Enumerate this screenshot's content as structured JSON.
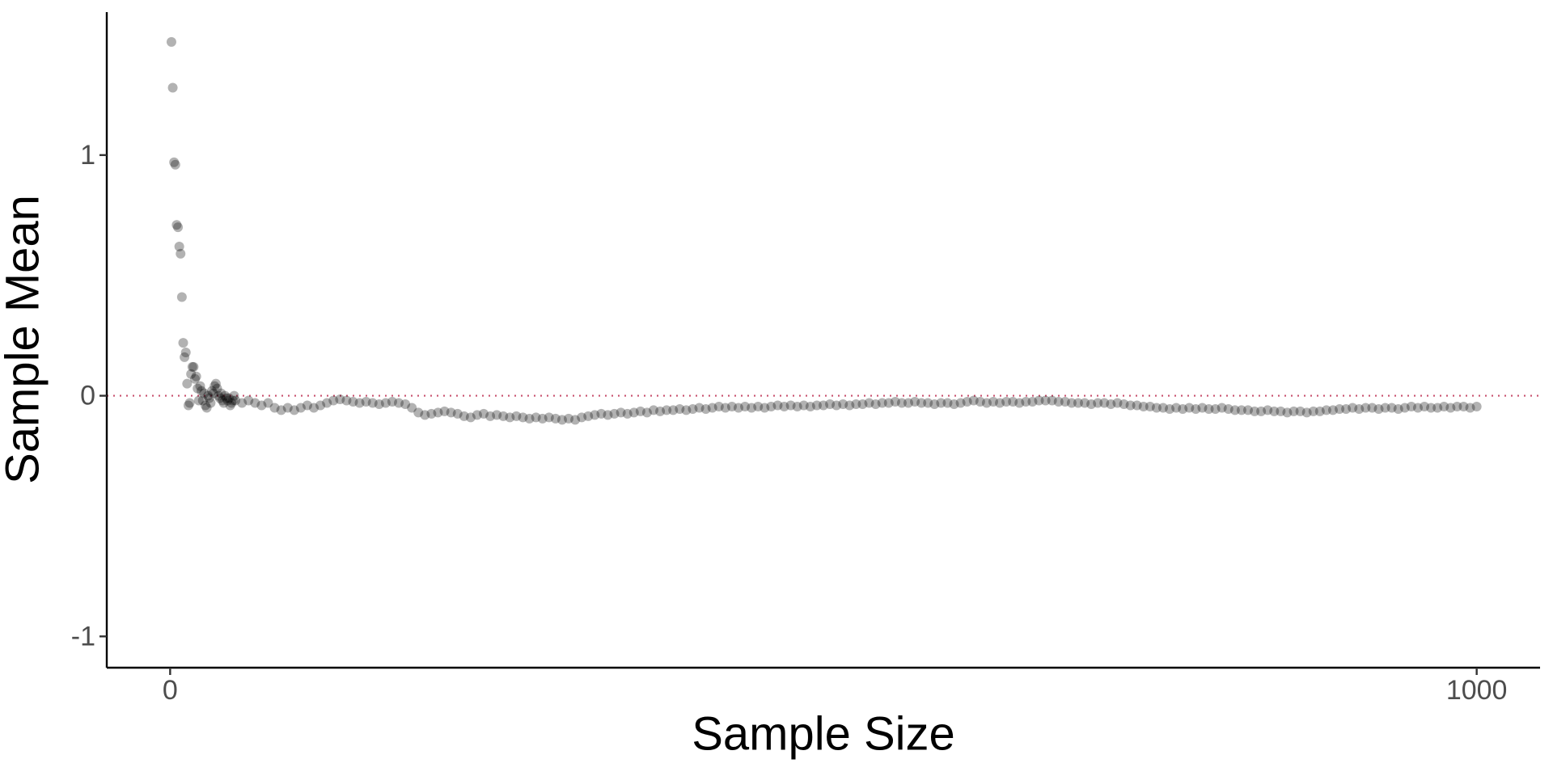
{
  "chart_data": {
    "type": "scatter",
    "xlabel": "Sample Size",
    "ylabel": "Sample Mean",
    "xlim": [
      -48.5,
      1048.5
    ],
    "ylim": [
      -1.13,
      1.594
    ],
    "xticks": [
      0,
      1000
    ],
    "yticks": [
      -1,
      0,
      1
    ],
    "hline": 0,
    "hline_color": "#c8506e",
    "series": [
      {
        "color": "#000000",
        "alpha": 0.3,
        "x": [
          1,
          2,
          3,
          4,
          5,
          6,
          7,
          8,
          9,
          10,
          11,
          12,
          13,
          14,
          15,
          16,
          17,
          18,
          19,
          20,
          21,
          22,
          23,
          24,
          25,
          26,
          27,
          28,
          29,
          30,
          31,
          32,
          33,
          34,
          35,
          36,
          37,
          38,
          39,
          40,
          41,
          42,
          43,
          44,
          45,
          46,
          47,
          48,
          49,
          50,
          55,
          60,
          65,
          70,
          75,
          80,
          85,
          90,
          95,
          100,
          105,
          110,
          115,
          120,
          125,
          130,
          135,
          140,
          145,
          150,
          155,
          160,
          165,
          170,
          175,
          180,
          185,
          190,
          195,
          200,
          205,
          210,
          215,
          220,
          225,
          230,
          235,
          240,
          245,
          250,
          255,
          260,
          265,
          270,
          275,
          280,
          285,
          290,
          295,
          300,
          305,
          310,
          315,
          320,
          325,
          330,
          335,
          340,
          345,
          350,
          355,
          360,
          365,
          370,
          375,
          380,
          385,
          390,
          395,
          400,
          405,
          410,
          415,
          420,
          425,
          430,
          435,
          440,
          445,
          450,
          455,
          460,
          465,
          470,
          475,
          480,
          485,
          490,
          495,
          500,
          505,
          510,
          515,
          520,
          525,
          530,
          535,
          540,
          545,
          550,
          555,
          560,
          565,
          570,
          575,
          580,
          585,
          590,
          595,
          600,
          605,
          610,
          615,
          620,
          625,
          630,
          635,
          640,
          645,
          650,
          655,
          660,
          665,
          670,
          675,
          680,
          685,
          690,
          695,
          700,
          705,
          710,
          715,
          720,
          725,
          730,
          735,
          740,
          745,
          750,
          755,
          760,
          765,
          770,
          775,
          780,
          785,
          790,
          795,
          800,
          805,
          810,
          815,
          820,
          825,
          830,
          835,
          840,
          845,
          850,
          855,
          860,
          865,
          870,
          875,
          880,
          885,
          890,
          895,
          900,
          905,
          910,
          915,
          920,
          925,
          930,
          935,
          940,
          945,
          950,
          955,
          960,
          965,
          970,
          975,
          980,
          985,
          990,
          995,
          1000
        ],
        "values": [
          1.47,
          1.28,
          0.97,
          0.96,
          0.71,
          0.7,
          0.62,
          0.59,
          0.41,
          0.22,
          0.16,
          0.18,
          0.05,
          -0.04,
          -0.03,
          0.09,
          0.12,
          0.12,
          0.07,
          0.08,
          0.03,
          -0.02,
          0.04,
          0.02,
          -0.02,
          0.01,
          -0.04,
          -0.05,
          0.0,
          -0.01,
          -0.03,
          0.02,
          0.01,
          0.04,
          0.05,
          0.03,
          0.0,
          -0.01,
          0.01,
          -0.02,
          -0.03,
          0.0,
          -0.01,
          -0.02,
          -0.01,
          -0.04,
          -0.03,
          -0.02,
          0.0,
          -0.02,
          -0.03,
          -0.02,
          -0.03,
          -0.04,
          -0.03,
          -0.05,
          -0.06,
          -0.05,
          -0.06,
          -0.05,
          -0.04,
          -0.05,
          -0.04,
          -0.03,
          -0.02,
          -0.015,
          -0.02,
          -0.025,
          -0.03,
          -0.025,
          -0.03,
          -0.035,
          -0.03,
          -0.025,
          -0.03,
          -0.035,
          -0.05,
          -0.07,
          -0.08,
          -0.075,
          -0.07,
          -0.065,
          -0.07,
          -0.075,
          -0.085,
          -0.09,
          -0.08,
          -0.075,
          -0.085,
          -0.08,
          -0.085,
          -0.09,
          -0.085,
          -0.09,
          -0.095,
          -0.09,
          -0.095,
          -0.09,
          -0.095,
          -0.1,
          -0.095,
          -0.1,
          -0.09,
          -0.085,
          -0.08,
          -0.075,
          -0.08,
          -0.075,
          -0.07,
          -0.075,
          -0.07,
          -0.065,
          -0.07,
          -0.06,
          -0.065,
          -0.06,
          -0.06,
          -0.055,
          -0.06,
          -0.055,
          -0.05,
          -0.055,
          -0.05,
          -0.045,
          -0.05,
          -0.045,
          -0.05,
          -0.045,
          -0.05,
          -0.045,
          -0.05,
          -0.045,
          -0.04,
          -0.045,
          -0.04,
          -0.045,
          -0.04,
          -0.045,
          -0.04,
          -0.04,
          -0.035,
          -0.04,
          -0.035,
          -0.04,
          -0.035,
          -0.035,
          -0.03,
          -0.035,
          -0.03,
          -0.03,
          -0.025,
          -0.03,
          -0.03,
          -0.025,
          -0.03,
          -0.03,
          -0.035,
          -0.03,
          -0.03,
          -0.035,
          -0.03,
          -0.025,
          -0.02,
          -0.025,
          -0.03,
          -0.025,
          -0.03,
          -0.025,
          -0.025,
          -0.03,
          -0.025,
          -0.025,
          -0.02,
          -0.02,
          -0.02,
          -0.025,
          -0.025,
          -0.03,
          -0.03,
          -0.03,
          -0.035,
          -0.03,
          -0.03,
          -0.035,
          -0.03,
          -0.035,
          -0.04,
          -0.04,
          -0.045,
          -0.045,
          -0.05,
          -0.05,
          -0.055,
          -0.05,
          -0.055,
          -0.05,
          -0.055,
          -0.05,
          -0.055,
          -0.055,
          -0.05,
          -0.055,
          -0.06,
          -0.06,
          -0.06,
          -0.065,
          -0.065,
          -0.06,
          -0.065,
          -0.065,
          -0.07,
          -0.065,
          -0.065,
          -0.07,
          -0.065,
          -0.065,
          -0.06,
          -0.06,
          -0.055,
          -0.055,
          -0.05,
          -0.055,
          -0.05,
          -0.05,
          -0.055,
          -0.05,
          -0.05,
          -0.055,
          -0.05,
          -0.045,
          -0.05,
          -0.045,
          -0.05,
          -0.05,
          -0.045,
          -0.05,
          -0.045,
          -0.045,
          -0.05,
          -0.045
        ]
      }
    ]
  }
}
